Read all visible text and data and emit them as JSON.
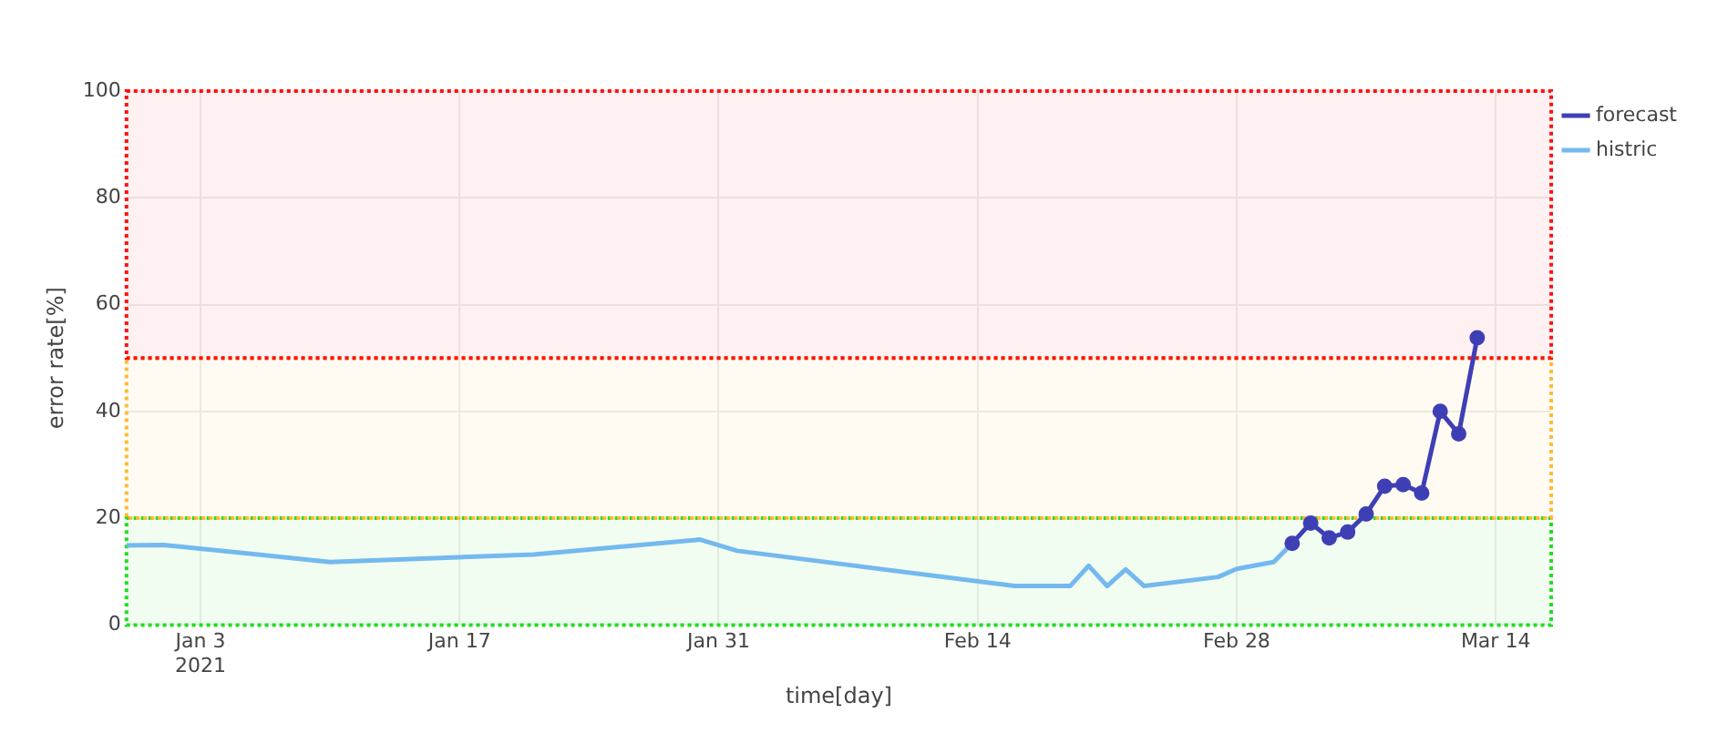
{
  "chart_data": {
    "type": "line",
    "xlabel": "time[day]",
    "ylabel": "error rate[%]",
    "xlim": [
      "2020-12-30",
      "2021-03-17"
    ],
    "xticks": [
      {
        "value": "2021-01-03",
        "label": "Jan 3\n2021"
      },
      {
        "value": "2021-01-17",
        "label": "Jan 17"
      },
      {
        "value": "2021-01-31",
        "label": "Jan 31"
      },
      {
        "value": "2021-02-14",
        "label": "Feb 14"
      },
      {
        "value": "2021-02-28",
        "label": "Feb 28"
      },
      {
        "value": "2021-03-14",
        "label": "Mar 14"
      }
    ],
    "ylim": [
      0,
      100
    ],
    "yticks": [
      0,
      20,
      40,
      60,
      80,
      100
    ],
    "grid": true,
    "legend": "top right",
    "bands": [
      {
        "axis": "y",
        "from": 0,
        "to": 20,
        "color": "#22dd22"
      },
      {
        "axis": "y",
        "from": 20,
        "to": 50,
        "color": "#ffbb33"
      },
      {
        "axis": "y",
        "from": 50,
        "to": 100,
        "color": "#ff1111"
      }
    ],
    "series": [
      {
        "name": "forecast",
        "color": "#3f3fb5",
        "marker": "circle",
        "x": [
          "2021-03-03",
          "2021-03-04",
          "2021-03-05",
          "2021-03-06",
          "2021-03-07",
          "2021-03-08",
          "2021-03-09",
          "2021-03-10",
          "2021-03-11",
          "2021-03-12",
          "2021-03-13"
        ],
        "values": [
          15.3,
          19.1,
          16.3,
          17.4,
          20.8,
          26,
          26.3,
          24.7,
          40,
          35.8,
          53.8
        ]
      },
      {
        "name": "histric",
        "color": "#74b9ee",
        "marker": "none",
        "x": [
          "2020-12-30",
          "2021-01-01",
          "2021-01-10",
          "2021-01-21",
          "2021-01-30",
          "2021-02-01",
          "2021-02-16",
          "2021-02-19",
          "2021-02-20",
          "2021-02-21",
          "2021-02-22",
          "2021-02-23",
          "2021-02-27",
          "2021-02-28",
          "2021-03-02",
          "2021-03-03"
        ],
        "values": [
          14.9,
          15,
          11.8,
          13.2,
          16,
          13.9,
          7.3,
          7.3,
          11.1,
          7.3,
          10.4,
          7.3,
          9,
          10.5,
          11.8,
          15.3
        ]
      }
    ]
  }
}
